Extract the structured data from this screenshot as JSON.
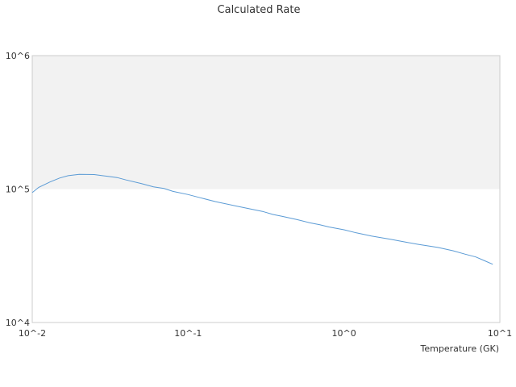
{
  "chart_data": {
    "type": "line",
    "title": "Calculated Rate",
    "xlabel": "Temperature (GK)",
    "ylabel": "",
    "x_scale": "log",
    "y_scale": "log",
    "xlim": [
      0.01,
      10
    ],
    "ylim": [
      10000,
      1000000
    ],
    "x_ticks": [
      {
        "value": 0.01,
        "label": "10^-2"
      },
      {
        "value": 0.1,
        "label": "10^-1"
      },
      {
        "value": 1,
        "label": "10^0"
      },
      {
        "value": 10,
        "label": "10^1"
      }
    ],
    "y_ticks": [
      {
        "value": 10000,
        "label": "10^4"
      },
      {
        "value": 100000,
        "label": "10^5"
      },
      {
        "value": 1000000,
        "label": "10^6"
      }
    ],
    "grid": false,
    "legend": "none",
    "background_band": {
      "from": 100000,
      "to": 1000000,
      "color": "#f2f2f2"
    },
    "colors": {
      "line": "#5b9bd5",
      "band": "#f2f2f2",
      "axis": "#cccccc"
    },
    "series": [
      {
        "values": [
          [
            0.01,
            94000
          ],
          [
            0.011,
            103000
          ],
          [
            0.013,
            113000
          ],
          [
            0.015,
            121000
          ],
          [
            0.017,
            126000
          ],
          [
            0.02,
            129000
          ],
          [
            0.025,
            128500
          ],
          [
            0.03,
            125000
          ],
          [
            0.035,
            122000
          ],
          [
            0.04,
            117000
          ],
          [
            0.05,
            110000
          ],
          [
            0.06,
            104000
          ],
          [
            0.07,
            101000
          ],
          [
            0.08,
            96000
          ],
          [
            0.1,
            91000
          ],
          [
            0.12,
            86000
          ],
          [
            0.15,
            80500
          ],
          [
            0.2,
            75000
          ],
          [
            0.25,
            71000
          ],
          [
            0.3,
            68000
          ],
          [
            0.35,
            64500
          ],
          [
            0.4,
            62500
          ],
          [
            0.5,
            59000
          ],
          [
            0.6,
            56000
          ],
          [
            0.7,
            54000
          ],
          [
            0.8,
            52000
          ],
          [
            1.0,
            49500
          ],
          [
            1.2,
            47000
          ],
          [
            1.5,
            44500
          ],
          [
            2.0,
            42000
          ],
          [
            2.5,
            40000
          ],
          [
            3.0,
            38500
          ],
          [
            4.0,
            36500
          ],
          [
            5.0,
            34500
          ],
          [
            6.0,
            32500
          ],
          [
            7.0,
            31000
          ],
          [
            8.0,
            29000
          ],
          [
            9.0,
            27300
          ]
        ]
      }
    ]
  }
}
